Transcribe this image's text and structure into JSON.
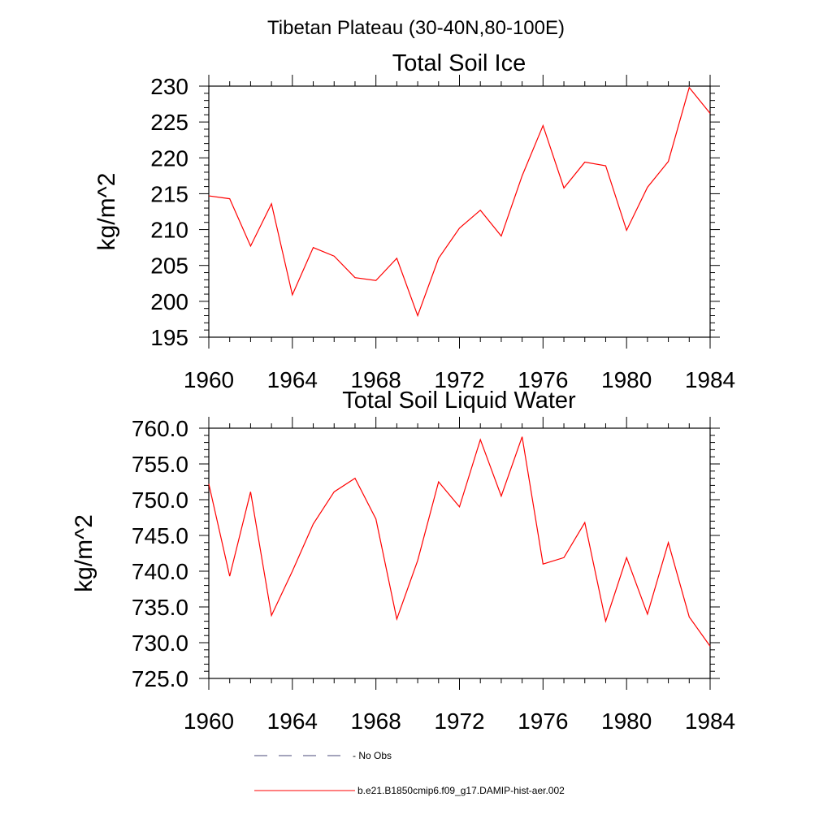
{
  "figure": {
    "suptitle": "Tibetan Plateau (30-40N,80-100E)",
    "legend": [
      {
        "label": "No Obs",
        "style": "dashed",
        "color": "#4a4a7a"
      },
      {
        "label": "b.e21.B1850cmip6.f09_g17.DAMIP-hist-aer.002",
        "style": "solid",
        "color": "#ff0000"
      }
    ]
  },
  "chart_data": [
    {
      "type": "line",
      "title": "Total Soil Ice",
      "ylabel": "kg/m^2",
      "xlabel": "",
      "xlim": [
        1960,
        1984
      ],
      "ylim": [
        195,
        230
      ],
      "xticks": [
        1960,
        1964,
        1968,
        1972,
        1976,
        1980,
        1984
      ],
      "xticklabels": [
        "1960",
        "1964",
        "1968",
        "1972",
        "1976",
        "1980",
        "1984"
      ],
      "yticks": [
        195,
        200,
        205,
        210,
        215,
        220,
        225,
        230
      ],
      "yticklabels": [
        "195",
        "200",
        "205",
        "210",
        "215",
        "220",
        "225",
        "230"
      ],
      "grid": false,
      "series": [
        {
          "name": "b.e21.B1850cmip6.f09_g17.DAMIP-hist-aer.002",
          "color": "#ff0000",
          "x": [
            1960,
            1961,
            1962,
            1963,
            1964,
            1965,
            1966,
            1967,
            1968,
            1969,
            1970,
            1971,
            1972,
            1973,
            1974,
            1975,
            1976,
            1977,
            1978,
            1979,
            1980,
            1981,
            1982,
            1983,
            1984
          ],
          "y": [
            214.7,
            214.3,
            207.7,
            213.6,
            200.9,
            207.5,
            206.3,
            203.3,
            202.9,
            206.0,
            198.0,
            206.0,
            210.2,
            212.7,
            209.1,
            217.5,
            224.5,
            215.8,
            219.4,
            218.9,
            209.9,
            215.9,
            219.5,
            229.8,
            226.2
          ]
        }
      ]
    },
    {
      "type": "line",
      "title": "Total Soil Liquid Water",
      "ylabel": "kg/m^2",
      "xlabel": "",
      "xlim": [
        1960,
        1984
      ],
      "ylim": [
        725,
        760
      ],
      "xticks": [
        1960,
        1964,
        1968,
        1972,
        1976,
        1980,
        1984
      ],
      "xticklabels": [
        "1960",
        "1964",
        "1968",
        "1972",
        "1976",
        "1980",
        "1984"
      ],
      "yticks": [
        725,
        730,
        735,
        740,
        745,
        750,
        755,
        760
      ],
      "yticklabels": [
        "725.0",
        "730.0",
        "735.0",
        "740.0",
        "745.0",
        "750.0",
        "755.0",
        "760.0"
      ],
      "grid": false,
      "series": [
        {
          "name": "b.e21.B1850cmip6.f09_g17.DAMIP-hist-aer.002",
          "color": "#ff0000",
          "x": [
            1960,
            1961,
            1962,
            1963,
            1964,
            1965,
            1966,
            1967,
            1968,
            1969,
            1970,
            1971,
            1972,
            1973,
            1974,
            1975,
            1976,
            1977,
            1978,
            1979,
            1980,
            1981,
            1982,
            1983,
            1984
          ],
          "y": [
            752.2,
            739.3,
            751.1,
            733.8,
            740.0,
            746.6,
            751.1,
            753.0,
            747.3,
            733.3,
            741.5,
            752.5,
            749.0,
            758.4,
            750.5,
            758.8,
            741.0,
            741.9,
            746.8,
            733.0,
            741.9,
            734.0,
            744.0,
            733.6,
            729.5
          ]
        }
      ]
    }
  ]
}
